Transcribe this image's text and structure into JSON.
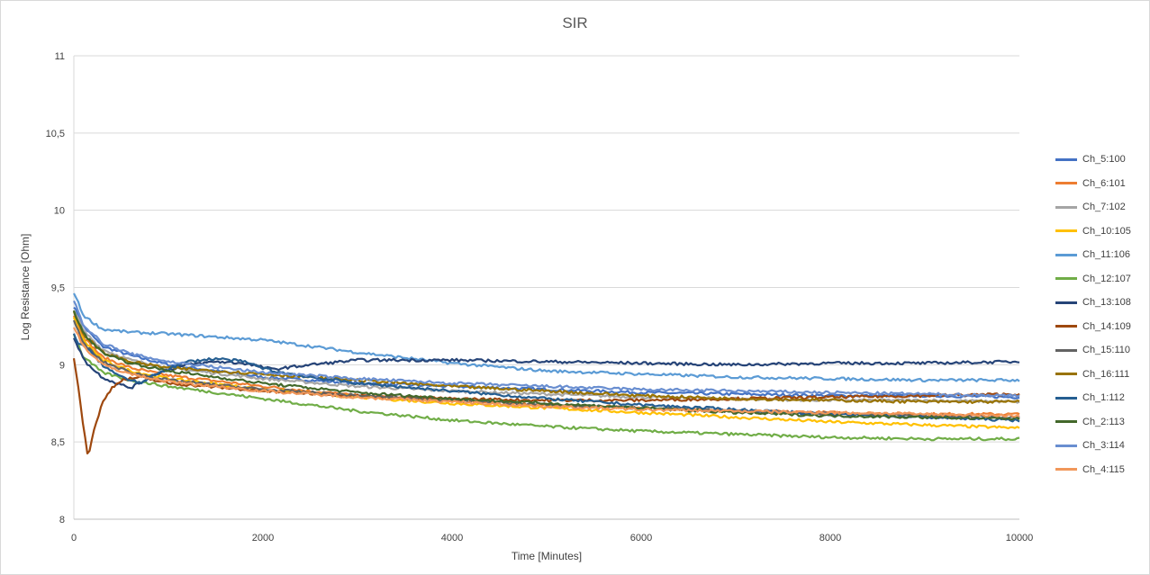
{
  "chart_data": {
    "type": "line",
    "title": "SIR",
    "xlabel": "Time [Minutes]",
    "ylabel": "Log Resistance [Ohm]",
    "xlim": [
      0,
      10000
    ],
    "ylim": [
      8,
      11
    ],
    "x_ticks": [
      "0",
      "2000",
      "4000",
      "6000",
      "8000",
      "10000"
    ],
    "y_ticks": [
      "8",
      "8,5",
      "9",
      "9,5",
      "10",
      "10,5",
      "11"
    ],
    "grid": "horizontal",
    "legend_position": "right",
    "series": [
      {
        "name": "Ch_5:100",
        "color": "#4472c4",
        "x": [
          0,
          100,
          300,
          600,
          1000,
          2000,
          3000,
          4000,
          5000,
          6000,
          7000,
          8000,
          9000,
          10000
        ],
        "y": [
          9.38,
          9.25,
          9.12,
          9.06,
          9.0,
          8.92,
          8.88,
          8.86,
          8.84,
          8.82,
          8.81,
          8.8,
          8.8,
          8.79
        ]
      },
      {
        "name": "Ch_6:101",
        "color": "#ed7d31",
        "x": [
          0,
          100,
          300,
          600,
          1000,
          2000,
          3000,
          4000,
          5000,
          6000,
          7000,
          8000,
          9000,
          10000
        ],
        "y": [
          9.32,
          9.18,
          9.05,
          8.98,
          8.93,
          8.86,
          8.8,
          8.77,
          8.74,
          8.72,
          8.7,
          8.69,
          8.68,
          8.68
        ]
      },
      {
        "name": "Ch_7:102",
        "color": "#a5a5a5",
        "x": [
          0,
          100,
          300,
          600,
          1000,
          2000,
          3000,
          4000,
          5000,
          6000,
          7000,
          8000,
          9000,
          10000
        ],
        "y": [
          9.36,
          9.22,
          9.1,
          9.03,
          8.98,
          8.91,
          8.86,
          8.83,
          8.81,
          8.79,
          8.78,
          8.77,
          8.77,
          8.76
        ]
      },
      {
        "name": "Ch_10:105",
        "color": "#ffc000",
        "x": [
          0,
          100,
          300,
          600,
          1000,
          2000,
          3000,
          4000,
          5000,
          6000,
          7000,
          8000,
          9000,
          10000
        ],
        "y": [
          9.3,
          9.16,
          9.03,
          8.96,
          8.91,
          8.84,
          8.79,
          8.75,
          8.72,
          8.69,
          8.66,
          8.63,
          8.61,
          8.59
        ]
      },
      {
        "name": "Ch_11:106",
        "color": "#5b9bd5",
        "x": [
          0,
          100,
          300,
          600,
          1000,
          2000,
          3000,
          4000,
          5000,
          6000,
          7000,
          8000,
          9000,
          10000
        ],
        "y": [
          9.47,
          9.32,
          9.23,
          9.21,
          9.2,
          9.16,
          9.08,
          9.01,
          8.96,
          8.94,
          8.92,
          8.91,
          8.9,
          8.9
        ]
      },
      {
        "name": "Ch_12:107",
        "color": "#70ad47",
        "x": [
          0,
          100,
          300,
          600,
          1000,
          2000,
          3000,
          4000,
          5000,
          6000,
          7000,
          8000,
          9000,
          10000
        ],
        "y": [
          9.2,
          9.05,
          8.95,
          8.9,
          8.86,
          8.78,
          8.7,
          8.64,
          8.6,
          8.57,
          8.55,
          8.53,
          8.52,
          8.52
        ]
      },
      {
        "name": "Ch_13:108",
        "color": "#264478",
        "x": [
          0,
          50,
          150,
          300,
          450,
          600,
          750,
          900,
          1200,
          1500,
          1800,
          2100,
          2500,
          3000,
          4000,
          5000,
          6000,
          7000,
          8000,
          9000,
          10000
        ],
        "y": [
          9.18,
          9.1,
          9.0,
          8.92,
          8.88,
          8.85,
          8.9,
          8.95,
          9.0,
          9.02,
          9.01,
          8.97,
          9.0,
          9.03,
          9.03,
          9.02,
          9.01,
          9.0,
          9.01,
          9.01,
          9.02
        ]
      },
      {
        "name": "Ch_14:109",
        "color": "#9e480e",
        "x": [
          0,
          50,
          100,
          150,
          200,
          300,
          400,
          500,
          700,
          1000,
          2000,
          3000,
          4000,
          5000,
          6000,
          7000,
          8000,
          9000,
          10000
        ],
        "y": [
          9.05,
          8.85,
          8.6,
          8.4,
          8.55,
          8.75,
          8.85,
          8.9,
          8.92,
          8.88,
          8.83,
          8.8,
          8.78,
          8.77,
          8.77,
          8.78,
          8.79,
          8.8,
          8.81
        ]
      },
      {
        "name": "Ch_15:110",
        "color": "#636363",
        "x": [
          0,
          100,
          300,
          600,
          1000,
          2000,
          3000,
          4000,
          5000,
          6000,
          7000,
          8000,
          9000,
          10000
        ],
        "y": [
          9.28,
          9.14,
          9.02,
          8.95,
          8.9,
          8.84,
          8.8,
          8.77,
          8.74,
          8.72,
          8.7,
          8.68,
          8.67,
          8.66
        ]
      },
      {
        "name": "Ch_16:111",
        "color": "#997300",
        "x": [
          0,
          100,
          300,
          600,
          1000,
          2000,
          3000,
          4000,
          5000,
          6000,
          7000,
          8000,
          9000,
          10000
        ],
        "y": [
          9.34,
          9.2,
          9.08,
          9.02,
          8.98,
          8.94,
          8.9,
          8.86,
          8.83,
          8.8,
          8.78,
          8.77,
          8.76,
          8.76
        ]
      },
      {
        "name": "Ch_1:112",
        "color": "#255e91",
        "x": [
          0,
          50,
          150,
          300,
          500,
          700,
          900,
          1200,
          1500,
          1800,
          2100,
          2500,
          3000,
          4000,
          5000,
          6000,
          7000,
          8000,
          9000,
          10000
        ],
        "y": [
          9.2,
          9.14,
          9.1,
          9.0,
          8.92,
          8.88,
          8.95,
          9.02,
          9.04,
          9.02,
          8.96,
          8.92,
          8.88,
          8.83,
          8.78,
          8.74,
          8.71,
          8.68,
          8.66,
          8.64
        ]
      },
      {
        "name": "Ch_2:113",
        "color": "#43682b",
        "x": [
          0,
          100,
          300,
          600,
          1000,
          2000,
          3000,
          4000,
          5000,
          6000,
          7000,
          8000,
          9000,
          10000
        ],
        "y": [
          9.35,
          9.2,
          9.08,
          9.01,
          8.96,
          8.88,
          8.82,
          8.78,
          8.75,
          8.72,
          8.69,
          8.67,
          8.66,
          8.65
        ]
      },
      {
        "name": "Ch_3:114",
        "color": "#698ed0",
        "x": [
          0,
          100,
          300,
          600,
          1000,
          2000,
          3000,
          4000,
          5000,
          6000,
          7000,
          8000,
          9000,
          10000
        ],
        "y": [
          9.42,
          9.26,
          9.14,
          9.07,
          9.02,
          8.95,
          8.91,
          8.88,
          8.86,
          8.84,
          8.83,
          8.82,
          8.81,
          8.8
        ]
      },
      {
        "name": "Ch_4:115",
        "color": "#f1975a",
        "x": [
          0,
          100,
          300,
          600,
          1000,
          2000,
          3000,
          4000,
          5000,
          6000,
          7000,
          8000,
          9000,
          10000
        ],
        "y": [
          9.25,
          9.12,
          9.0,
          8.94,
          8.89,
          8.83,
          8.79,
          8.76,
          8.73,
          8.71,
          8.7,
          8.69,
          8.68,
          8.67
        ]
      }
    ]
  }
}
